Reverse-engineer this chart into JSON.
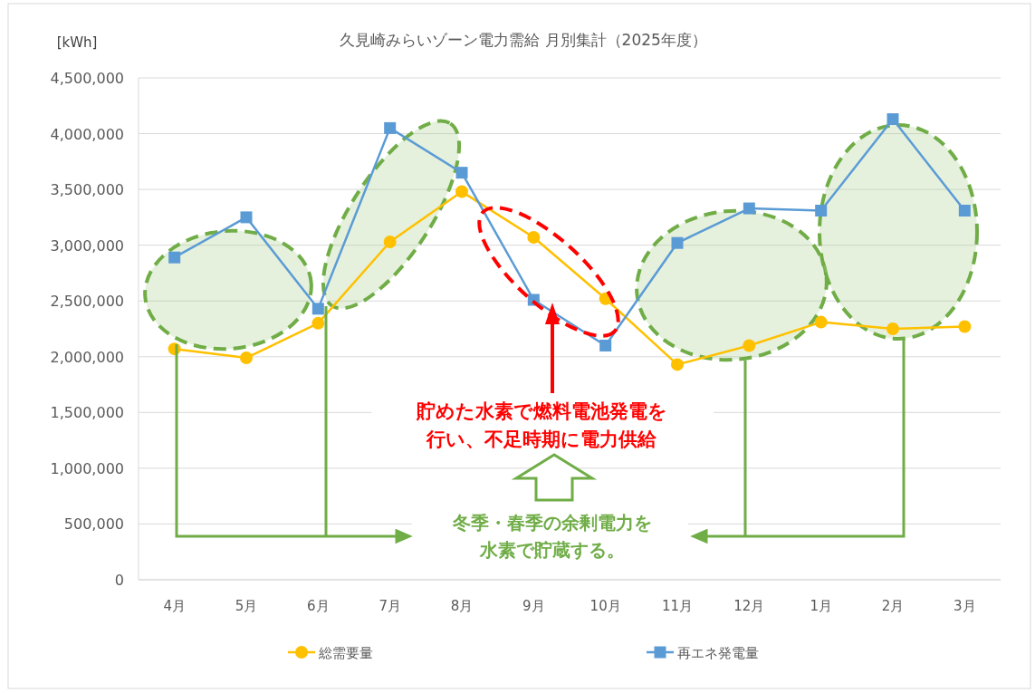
{
  "chart_data": {
    "type": "line",
    "title": "久見崎みらいゾーン電力需給 月別集計（2025年度）",
    "ylabel": "[kWh]",
    "categories": [
      "4月",
      "5月",
      "6月",
      "7月",
      "8月",
      "9月",
      "10月",
      "11月",
      "12月",
      "1月",
      "2月",
      "3月"
    ],
    "series": [
      {
        "name": "総需要量",
        "color": "#ffc000",
        "marker": "circle",
        "values": [
          2070000,
          1990000,
          2300000,
          3030000,
          3480000,
          3070000,
          2520000,
          1930000,
          2100000,
          2310000,
          2250000,
          2270000
        ]
      },
      {
        "name": "再エネ発電量",
        "color": "#5b9bd5",
        "marker": "square",
        "values": [
          2890000,
          3250000,
          2430000,
          4050000,
          3650000,
          2510000,
          2100000,
          3020000,
          3330000,
          3310000,
          4130000,
          3310000
        ]
      }
    ],
    "ylim": [
      0,
      4500000
    ],
    "yticks": [
      {
        "value": 0,
        "label": "0"
      },
      {
        "value": 500000,
        "label": "500,000"
      },
      {
        "value": 1000000,
        "label": "1,000,000"
      },
      {
        "value": 1500000,
        "label": "1,500,000"
      },
      {
        "value": 2000000,
        "label": "2,000,000"
      },
      {
        "value": 2500000,
        "label": "2,500,000"
      },
      {
        "value": 3000000,
        "label": "3,000,000"
      },
      {
        "value": 3500000,
        "label": "3,500,000"
      },
      {
        "value": 4000000,
        "label": "4,000,000"
      },
      {
        "value": 4500000,
        "label": "4,500,000"
      }
    ],
    "grid": "y",
    "legend": "bottom",
    "line_style": "solid",
    "annotations": [
      "貯めた水素で燃料電池発電を行い、不足時期に電力供給",
      "冬季・春季の余剰電力を水素で貯蔵する。"
    ]
  }
}
